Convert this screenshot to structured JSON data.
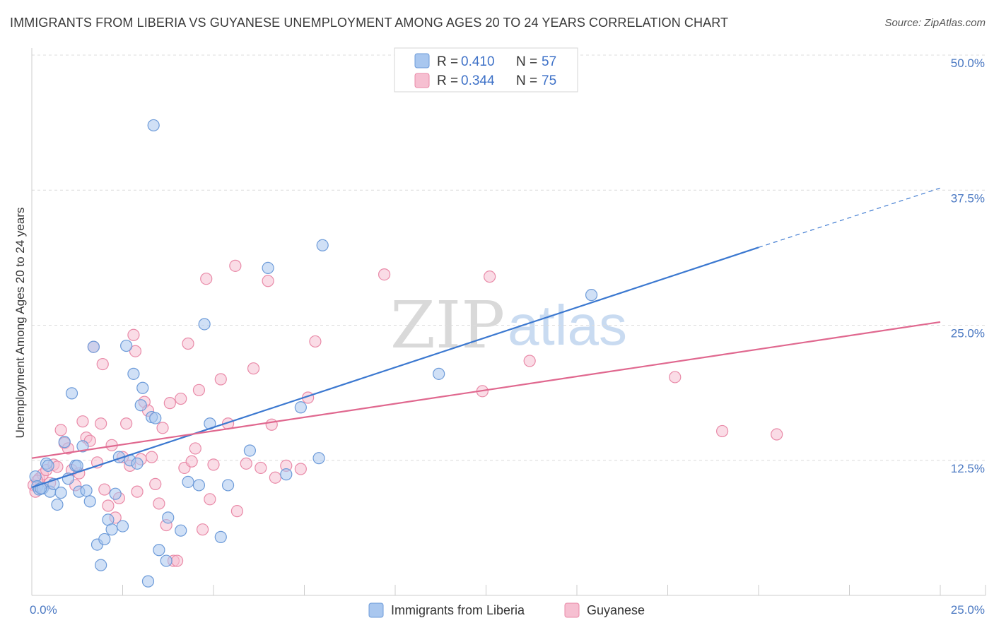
{
  "title": "IMMIGRANTS FROM LIBERIA VS GUYANESE UNEMPLOYMENT AMONG AGES 20 TO 24 YEARS CORRELATION CHART",
  "source": "Source: ZipAtlas.com",
  "watermark": {
    "zip": "ZIP",
    "atlas": "atlas"
  },
  "colors": {
    "blue_fill": "#a9c7ef",
    "blue_stroke": "#6d9bd9",
    "blue_line": "#3b78d0",
    "pink_fill": "#f6bfd1",
    "pink_stroke": "#e98aa8",
    "pink_line": "#e0688f",
    "grid": "#dcdcdc",
    "tick_text": "#4a78c2"
  },
  "legend": {
    "rows": [
      {
        "r_label": "R =",
        "r_value": "0.410",
        "n_label": "N =",
        "n_value": "57"
      },
      {
        "r_label": "R =",
        "r_value": "0.344",
        "n_label": "N =",
        "n_value": "75"
      }
    ]
  },
  "chart_data": {
    "type": "scatter",
    "xlabel": "",
    "ylabel": "Unemployment Among Ages 20 to 24 years",
    "xlim": [
      0,
      25
    ],
    "ylim": [
      0,
      50
    ],
    "x_tick_labels": [
      "0.0%",
      "25.0%"
    ],
    "y_ticks": [
      12.5,
      25.0,
      37.5,
      50.0
    ],
    "y_tick_labels": [
      "12.5%",
      "25.0%",
      "37.5%",
      "50.0%"
    ],
    "grid": true,
    "legend_position": "top-center",
    "series": [
      {
        "name": "Immigrants from Liberia",
        "R": 0.41,
        "N": 57,
        "trend": {
          "x0": 0.0,
          "y0": 10.0,
          "x1": 20.0,
          "y1": 32.2,
          "dash_to_x": 25.0,
          "dash_to_y": 37.7
        },
        "points": [
          [
            0.1,
            11.0
          ],
          [
            0.15,
            10.1
          ],
          [
            0.2,
            9.8
          ],
          [
            0.3,
            9.9
          ],
          [
            0.4,
            12.2
          ],
          [
            0.5,
            9.6
          ],
          [
            0.6,
            10.3
          ],
          [
            0.7,
            8.4
          ],
          [
            0.8,
            9.5
          ],
          [
            0.9,
            14.2
          ],
          [
            1.0,
            10.8
          ],
          [
            1.1,
            18.7
          ],
          [
            1.2,
            12.0
          ],
          [
            1.3,
            9.6
          ],
          [
            1.4,
            13.8
          ],
          [
            1.5,
            9.7
          ],
          [
            1.6,
            8.7
          ],
          [
            1.7,
            23.0
          ],
          [
            1.8,
            4.7
          ],
          [
            1.9,
            2.8
          ],
          [
            2.0,
            5.2
          ],
          [
            2.1,
            7.0
          ],
          [
            2.2,
            6.1
          ],
          [
            2.3,
            9.4
          ],
          [
            2.4,
            12.8
          ],
          [
            2.5,
            6.4
          ],
          [
            2.6,
            23.1
          ],
          [
            2.7,
            12.5
          ],
          [
            2.8,
            20.5
          ],
          [
            2.9,
            12.2
          ],
          [
            3.0,
            17.6
          ],
          [
            3.05,
            19.2
          ],
          [
            3.2,
            1.3
          ],
          [
            3.3,
            16.5
          ],
          [
            3.4,
            16.4
          ],
          [
            3.35,
            43.5
          ],
          [
            3.5,
            4.2
          ],
          [
            3.7,
            3.2
          ],
          [
            3.75,
            7.2
          ],
          [
            4.1,
            6.0
          ],
          [
            4.3,
            10.5
          ],
          [
            4.6,
            10.2
          ],
          [
            4.75,
            25.1
          ],
          [
            4.9,
            15.9
          ],
          [
            5.2,
            5.4
          ],
          [
            5.4,
            10.2
          ],
          [
            6.0,
            13.4
          ],
          [
            6.5,
            30.3
          ],
          [
            7.0,
            11.2
          ],
          [
            7.4,
            17.4
          ],
          [
            7.9,
            12.7
          ],
          [
            8.0,
            32.4
          ],
          [
            11.2,
            20.5
          ],
          [
            15.4,
            27.8
          ],
          [
            0.25,
            9.9
          ],
          [
            0.45,
            12.0
          ],
          [
            1.25,
            12.0
          ]
        ]
      },
      {
        "name": "Guyanese",
        "R": 0.344,
        "N": 75,
        "trend": {
          "x0": 0.0,
          "y0": 12.7,
          "x1": 25.0,
          "y1": 25.3
        },
        "points": [
          [
            0.05,
            10.2
          ],
          [
            0.1,
            9.6
          ],
          [
            0.2,
            10.8
          ],
          [
            0.3,
            11.2
          ],
          [
            0.4,
            11.6
          ],
          [
            0.5,
            10.4
          ],
          [
            0.6,
            12.1
          ],
          [
            0.7,
            11.9
          ],
          [
            0.8,
            15.3
          ],
          [
            0.9,
            14.1
          ],
          [
            1.0,
            13.6
          ],
          [
            1.1,
            11.6
          ],
          [
            1.2,
            10.2
          ],
          [
            1.3,
            11.3
          ],
          [
            1.4,
            16.1
          ],
          [
            1.5,
            14.6
          ],
          [
            1.6,
            14.3
          ],
          [
            1.7,
            23.0
          ],
          [
            1.8,
            12.3
          ],
          [
            1.9,
            15.9
          ],
          [
            1.95,
            21.4
          ],
          [
            2.0,
            9.8
          ],
          [
            2.1,
            8.3
          ],
          [
            2.2,
            13.9
          ],
          [
            2.3,
            7.2
          ],
          [
            2.4,
            9.0
          ],
          [
            2.5,
            12.8
          ],
          [
            2.6,
            15.9
          ],
          [
            2.7,
            12.0
          ],
          [
            2.8,
            24.1
          ],
          [
            2.85,
            22.6
          ],
          [
            2.9,
            9.6
          ],
          [
            3.0,
            12.6
          ],
          [
            3.1,
            17.9
          ],
          [
            3.2,
            17.1
          ],
          [
            3.3,
            12.8
          ],
          [
            3.4,
            10.3
          ],
          [
            3.5,
            8.5
          ],
          [
            3.6,
            15.5
          ],
          [
            3.7,
            6.5
          ],
          [
            3.8,
            17.8
          ],
          [
            3.9,
            3.2
          ],
          [
            4.0,
            3.2
          ],
          [
            4.1,
            18.2
          ],
          [
            4.2,
            11.8
          ],
          [
            4.3,
            23.3
          ],
          [
            4.4,
            12.4
          ],
          [
            4.5,
            13.6
          ],
          [
            4.6,
            19.0
          ],
          [
            4.7,
            6.1
          ],
          [
            4.8,
            29.3
          ],
          [
            4.9,
            8.9
          ],
          [
            5.0,
            12.1
          ],
          [
            5.2,
            20.0
          ],
          [
            5.4,
            15.9
          ],
          [
            5.6,
            30.5
          ],
          [
            5.65,
            7.8
          ],
          [
            5.9,
            12.2
          ],
          [
            6.1,
            21.0
          ],
          [
            6.3,
            11.8
          ],
          [
            6.5,
            29.1
          ],
          [
            6.6,
            15.8
          ],
          [
            6.7,
            10.9
          ],
          [
            7.0,
            12.0
          ],
          [
            7.4,
            11.7
          ],
          [
            7.6,
            18.3
          ],
          [
            7.8,
            23.5
          ],
          [
            9.7,
            29.7
          ],
          [
            12.4,
            18.9
          ],
          [
            12.6,
            29.5
          ],
          [
            13.7,
            21.7
          ],
          [
            17.7,
            20.2
          ],
          [
            19.0,
            15.2
          ],
          [
            20.5,
            14.9
          ],
          [
            0.15,
            10.6
          ]
        ]
      }
    ]
  },
  "bottom_legend": {
    "items": [
      {
        "label": "Immigrants from Liberia"
      },
      {
        "label": "Guyanese"
      }
    ]
  }
}
